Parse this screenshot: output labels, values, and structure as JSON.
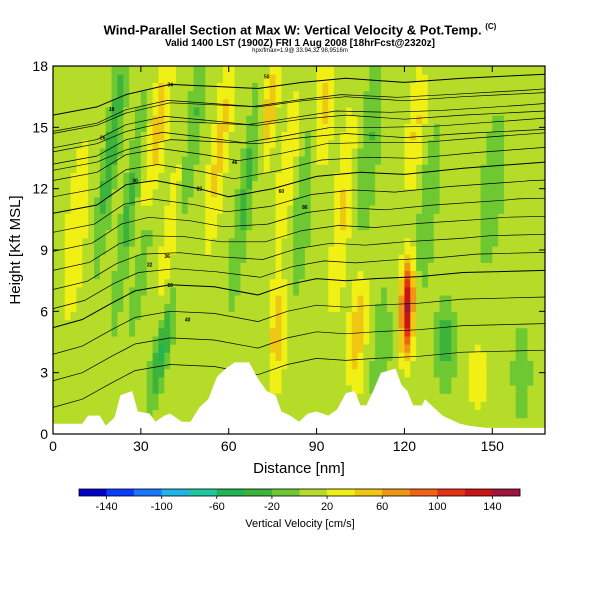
{
  "chart_data": {
    "type": "heatmap",
    "title": "Wind-Parallel Section at Max W: Vertical Velocity & Pot.Temp.",
    "title_mark": "(C)",
    "subtitle": "Valid 1400 LST (1900Z) FRI 1 Aug 2008 [18hrFcst@2320z]",
    "small_note": "hpx/fmax=1.9@ 33.94,32 98,9516m",
    "xlabel": "Distance [nm]",
    "ylabel": "Height [Kft MSL]",
    "xlim": [
      0,
      168
    ],
    "ylim": [
      0,
      18
    ],
    "xticks": [
      0,
      30,
      60,
      90,
      120,
      150
    ],
    "yticks": [
      0,
      3,
      6,
      9,
      12,
      15,
      18
    ],
    "colorbar": {
      "label": "Vertical Velocity [cm/s]",
      "range": [
        -160,
        160
      ],
      "tick_values": [
        -140,
        -100,
        -60,
        -20,
        20,
        60,
        100,
        140
      ],
      "tick_labels": [
        "-140",
        "-100",
        "-60",
        "-20",
        "20",
        "60",
        "100",
        "140"
      ],
      "colors": [
        "#0000c8",
        "#0a3cff",
        "#1a78ff",
        "#1eb4e6",
        "#20c8a0",
        "#22b450",
        "#3cb43c",
        "#6ec832",
        "#b4dc28",
        "#f0f014",
        "#f0c814",
        "#f09614",
        "#f06414",
        "#e63214",
        "#c81414",
        "#a0143c"
      ]
    },
    "terrain_profile": [
      [
        0,
        0.5
      ],
      [
        10,
        0.5
      ],
      [
        12,
        0.9
      ],
      [
        16,
        0.9
      ],
      [
        18,
        0.4
      ],
      [
        21,
        0.8
      ],
      [
        23,
        1.9
      ],
      [
        27,
        2.1
      ],
      [
        29,
        1.1
      ],
      [
        33,
        1.0
      ],
      [
        35,
        0.6
      ],
      [
        38,
        0.9
      ],
      [
        40,
        1.0
      ],
      [
        44,
        0.6
      ],
      [
        47,
        0.6
      ],
      [
        50,
        1.3
      ],
      [
        53,
        1.7
      ],
      [
        56,
        2.8
      ],
      [
        59,
        3.2
      ],
      [
        62,
        3.5
      ],
      [
        67,
        3.5
      ],
      [
        70,
        2.7
      ],
      [
        73,
        2.1
      ],
      [
        76,
        1.9
      ],
      [
        78,
        1.1
      ],
      [
        81,
        0.9
      ],
      [
        84,
        0.6
      ],
      [
        87,
        1.0
      ],
      [
        90,
        1.1
      ],
      [
        94,
        0.9
      ],
      [
        97,
        1.2
      ],
      [
        100,
        2.0
      ],
      [
        103,
        2.1
      ],
      [
        105,
        1.4
      ],
      [
        107,
        1.4
      ],
      [
        109,
        2.0
      ],
      [
        112,
        3.0
      ],
      [
        117,
        3.2
      ],
      [
        119,
        2.4
      ],
      [
        121,
        2.1
      ],
      [
        123,
        1.4
      ],
      [
        126,
        1.4
      ],
      [
        127,
        1.7
      ],
      [
        130,
        1.3
      ],
      [
        133,
        0.9
      ],
      [
        136,
        0.7
      ],
      [
        139,
        0.5
      ],
      [
        142,
        0.4
      ],
      [
        148,
        0.3
      ],
      [
        168,
        0.3
      ]
    ],
    "w_features": [
      {
        "x": 20,
        "z": 14,
        "sx": 2.5,
        "sz": 5,
        "tilt": 0.32,
        "w": -45
      },
      {
        "x": 26,
        "z": 11,
        "sx": 2.2,
        "sz": 5,
        "tilt": 0.3,
        "w": -35
      },
      {
        "x": 37,
        "z": 4,
        "sx": 2.5,
        "sz": 2.5,
        "tilt": 0.45,
        "w": -55
      },
      {
        "x": 30,
        "z": 8,
        "sx": 2,
        "sz": 3,
        "tilt": 0.35,
        "w": -30
      },
      {
        "x": 36,
        "z": 15,
        "sx": 3,
        "sz": 4,
        "tilt": 0.3,
        "w": 45
      },
      {
        "x": 40,
        "z": 10,
        "sx": 2.5,
        "sz": 4,
        "tilt": 0.3,
        "w": 30
      },
      {
        "x": 48,
        "z": 15,
        "sx": 2.5,
        "sz": 4,
        "tilt": 0.3,
        "w": -30
      },
      {
        "x": 57,
        "z": 14,
        "sx": 3,
        "sz": 5,
        "tilt": 0.3,
        "w": 40
      },
      {
        "x": 66,
        "z": 12,
        "sx": 2.5,
        "sz": 5,
        "tilt": 0.3,
        "w": -35
      },
      {
        "x": 74,
        "z": 16,
        "sx": 2.5,
        "sz": 3,
        "tilt": 0.2,
        "w": 45
      },
      {
        "x": 80,
        "z": 13,
        "sx": 3,
        "sz": 4,
        "tilt": 0.25,
        "w": 30
      },
      {
        "x": 77,
        "z": 5,
        "sx": 3,
        "sz": 2.5,
        "tilt": 0.1,
        "w": 50
      },
      {
        "x": 86,
        "z": 12,
        "sx": 3,
        "sz": 5,
        "tilt": 0.25,
        "w": -30
      },
      {
        "x": 92,
        "z": 16,
        "sx": 4,
        "sz": 3,
        "tilt": 0.2,
        "w": 40
      },
      {
        "x": 99,
        "z": 11,
        "sx": 3,
        "sz": 5,
        "tilt": 0.2,
        "w": 35
      },
      {
        "x": 104,
        "z": 5,
        "sx": 3,
        "sz": 3,
        "tilt": 0.1,
        "w": 45
      },
      {
        "x": 108,
        "z": 14,
        "sx": 3,
        "sz": 4,
        "tilt": 0.2,
        "w": -30
      },
      {
        "x": 112,
        "z": 4,
        "sx": 3,
        "sz": 3,
        "tilt": 0.1,
        "w": -25
      },
      {
        "x": 121,
        "z": 6.2,
        "sx": 2.2,
        "sz": 2.2,
        "tilt": 0.05,
        "w": 135
      },
      {
        "x": 124,
        "z": 15,
        "sx": 3,
        "sz": 3,
        "tilt": 0.2,
        "w": 35
      },
      {
        "x": 128,
        "z": 11,
        "sx": 3,
        "sz": 4,
        "tilt": 0.2,
        "w": -25
      },
      {
        "x": 134,
        "z": 4.5,
        "sx": 3,
        "sz": 2,
        "tilt": 0,
        "w": -40
      },
      {
        "x": 145,
        "z": 3,
        "sx": 4,
        "sz": 2,
        "tilt": 0,
        "w": 25
      },
      {
        "x": 160,
        "z": 3,
        "sx": 3,
        "sz": 2,
        "tilt": 0,
        "w": -25
      },
      {
        "x": 8,
        "z": 10,
        "sx": 4,
        "sz": 5,
        "tilt": 0.2,
        "w": 25
      },
      {
        "x": 150,
        "z": 12,
        "sx": 6,
        "sz": 6,
        "tilt": 0.2,
        "w": -12
      }
    ],
    "contours": [
      {
        "label": "16",
        "points": [
          [
            0,
            5.2
          ],
          [
            10,
            5.6
          ],
          [
            20,
            6.4
          ],
          [
            28,
            7.0
          ],
          [
            40,
            7.3
          ],
          [
            55,
            7.2
          ],
          [
            70,
            6.8
          ],
          [
            80,
            7.3
          ],
          [
            90,
            7.6
          ],
          [
            100,
            7.5
          ],
          [
            110,
            7.6
          ],
          [
            125,
            7.7
          ],
          [
            140,
            7.9
          ],
          [
            168,
            8.0
          ]
        ]
      },
      {
        "label": "22",
        "points": [
          [
            0,
            10.8
          ],
          [
            15,
            11.2
          ],
          [
            25,
            12.2
          ],
          [
            35,
            12.4
          ],
          [
            50,
            12.0
          ],
          [
            60,
            11.6
          ],
          [
            75,
            12.0
          ],
          [
            90,
            12.6
          ],
          [
            105,
            12.8
          ],
          [
            120,
            12.7
          ],
          [
            140,
            13.0
          ],
          [
            168,
            13.3
          ]
        ]
      },
      {
        "label": "34",
        "points": [
          [
            0,
            15.6
          ],
          [
            15,
            16.0
          ],
          [
            25,
            16.6
          ],
          [
            40,
            17.1
          ],
          [
            55,
            17.0
          ],
          [
            70,
            16.9
          ],
          [
            85,
            17.2
          ],
          [
            100,
            17.4
          ],
          [
            120,
            17.2
          ],
          [
            140,
            17.4
          ],
          [
            168,
            17.6
          ]
        ]
      }
    ],
    "contour_labels": [
      "18",
      "26",
      "30",
      "32",
      "36",
      "40",
      "46",
      "50",
      "60",
      "86"
    ]
  }
}
